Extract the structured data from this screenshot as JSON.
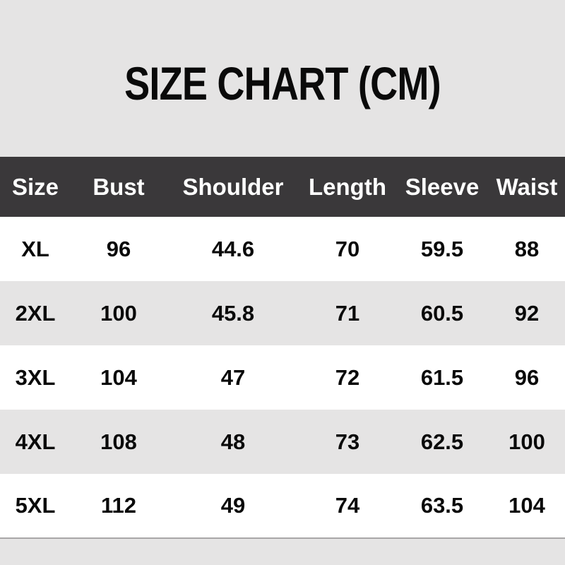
{
  "colors": {
    "page_background": "#e5e4e4",
    "header_background": "#3a383a",
    "header_text": "#ffffff",
    "row_text": "#0a0a0a",
    "alt_row_background": "#ffffff",
    "table_bottom_border": "#a9a7a8"
  },
  "chart_data": {
    "type": "table",
    "title": "SIZE CHART (CM)",
    "columns": [
      "Size",
      "Bust",
      "Shoulder",
      "Length",
      "Sleeve",
      "Waist"
    ],
    "rows": [
      [
        "XL",
        "96",
        "44.6",
        "70",
        "59.5",
        "88"
      ],
      [
        "2XL",
        "100",
        "45.8",
        "71",
        "60.5",
        "92"
      ],
      [
        "3XL",
        "104",
        "47",
        "72",
        "61.5",
        "96"
      ],
      [
        "4XL",
        "108",
        "48",
        "73",
        "62.5",
        "100"
      ],
      [
        "5XL",
        "112",
        "49",
        "74",
        "63.5",
        "104"
      ]
    ]
  }
}
